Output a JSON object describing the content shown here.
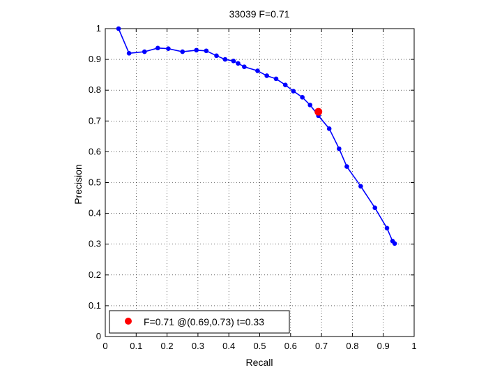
{
  "chart_data": {
    "type": "line",
    "title": "33039 F=0.71",
    "xlabel": "Recall",
    "ylabel": "Precision",
    "xlim": [
      0,
      1
    ],
    "ylim": [
      0,
      1
    ],
    "grid": true,
    "legend_position": "bottom-left",
    "x_ticks": [
      "0",
      "0.1",
      "0.2",
      "0.3",
      "0.4",
      "0.5",
      "0.6",
      "0.7",
      "0.8",
      "0.9",
      "1"
    ],
    "y_ticks": [
      "0",
      "0.1",
      "0.2",
      "0.3",
      "0.4",
      "0.5",
      "0.6",
      "0.7",
      "0.8",
      "0.9",
      "1"
    ],
    "series": [
      {
        "color": "#0000ff",
        "marker": "dot",
        "x": [
          0.043,
          0.077,
          0.127,
          0.17,
          0.204,
          0.25,
          0.295,
          0.327,
          0.36,
          0.388,
          0.415,
          0.43,
          0.45,
          0.493,
          0.523,
          0.553,
          0.583,
          0.609,
          0.638,
          0.663,
          0.69,
          0.725,
          0.757,
          0.782,
          0.827,
          0.873,
          0.912,
          0.93,
          0.937
        ],
        "y": [
          1.0,
          0.92,
          0.925,
          0.937,
          0.935,
          0.925,
          0.93,
          0.928,
          0.912,
          0.9,
          0.895,
          0.887,
          0.876,
          0.863,
          0.847,
          0.837,
          0.817,
          0.797,
          0.777,
          0.752,
          0.717,
          0.675,
          0.61,
          0.552,
          0.488,
          0.418,
          0.352,
          0.31,
          0.302
        ]
      }
    ],
    "best_point": {
      "x": 0.69,
      "y": 0.73,
      "color": "#ff0000",
      "legend_label": "F=0.71 @(0.69,0.73) t=0.33"
    }
  }
}
